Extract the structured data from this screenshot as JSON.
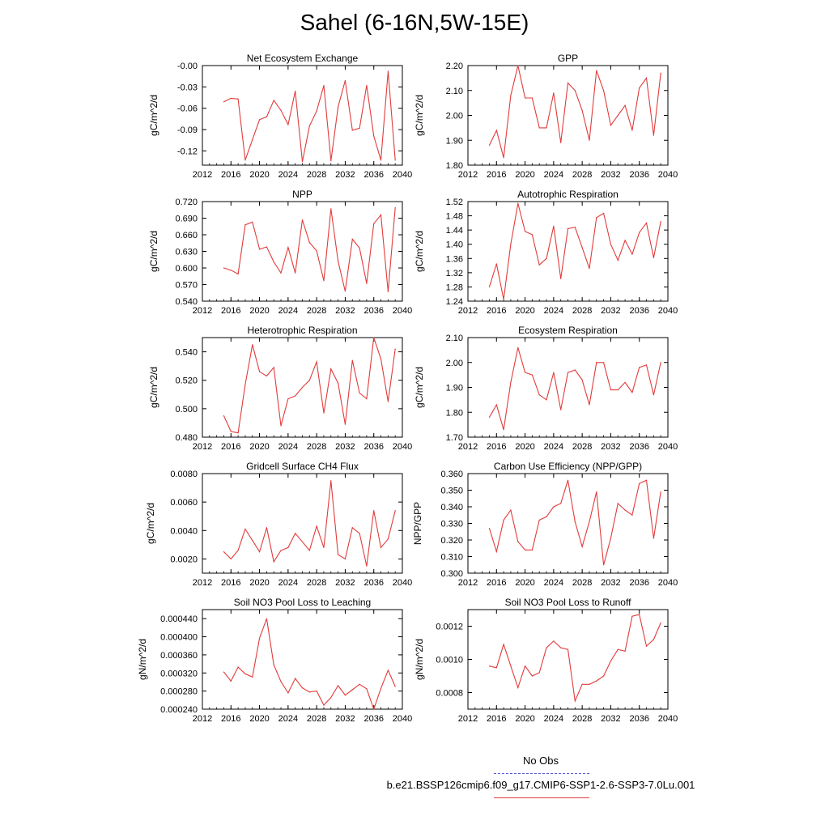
{
  "title": "Sahel (6-16N,5W-15E)",
  "legend": [
    {
      "label": "No Obs",
      "color": "#5b5bd6",
      "style": "dashed"
    },
    {
      "label": "b.e21.BSSP126cmip6.f09_g17.CMIP6-SSP1-2.6-SSP3-7.0Lu.001",
      "color": "#e23b3b",
      "style": "solid"
    }
  ],
  "chart_data": [
    {
      "type": "line",
      "title": "Net Ecosystem Exchange",
      "ylabel": "gC/m^2/d",
      "xlim": [
        2012,
        2040
      ],
      "xticks": [
        "2012",
        "2016",
        "2020",
        "2024",
        "2028",
        "2032",
        "2036",
        "2040"
      ],
      "ylim": [
        -0.14,
        0
      ],
      "yticks": [
        -0.12,
        -0.09,
        -0.06,
        -0.03,
        -0.0
      ],
      "ytick_labels": [
        "-0.12",
        "-0.09",
        "-0.06",
        "-0.03",
        "-0.00"
      ],
      "series": [
        {
          "color": "#e23b3b",
          "x": [
            2015,
            2016,
            2017,
            2018,
            2019,
            2020,
            2021,
            2022,
            2023,
            2024,
            2025,
            2026,
            2027,
            2028,
            2029,
            2030,
            2031,
            2032,
            2033,
            2034,
            2035,
            2036,
            2037,
            2038,
            2039
          ],
          "values": [
            -0.051,
            -0.046,
            -0.047,
            -0.133,
            -0.104,
            -0.076,
            -0.072,
            -0.049,
            -0.063,
            -0.083,
            -0.036,
            -0.135,
            -0.085,
            -0.064,
            -0.028,
            -0.134,
            -0.058,
            -0.021,
            -0.091,
            -0.088,
            -0.028,
            -0.099,
            -0.133,
            -0.008,
            -0.133
          ]
        }
      ]
    },
    {
      "type": "line",
      "title": "GPP",
      "ylabel": "gC/m^2/d",
      "xlim": [
        2012,
        2040
      ],
      "xticks": [
        "2012",
        "2016",
        "2020",
        "2024",
        "2028",
        "2032",
        "2036",
        "2040"
      ],
      "ylim": [
        1.8,
        2.2
      ],
      "yticks": [
        1.8,
        1.9,
        2.0,
        2.1,
        2.2
      ],
      "ytick_labels": [
        "1.80",
        "1.90",
        "2.00",
        "2.10",
        "2.20"
      ],
      "series": [
        {
          "color": "#e23b3b",
          "x": [
            2015,
            2016,
            2017,
            2018,
            2019,
            2020,
            2021,
            2022,
            2023,
            2024,
            2025,
            2026,
            2027,
            2028,
            2029,
            2030,
            2031,
            2032,
            2033,
            2034,
            2035,
            2036,
            2037,
            2038,
            2039
          ],
          "values": [
            1.88,
            1.94,
            1.83,
            2.08,
            2.2,
            2.07,
            2.07,
            1.95,
            1.95,
            2.09,
            1.89,
            2.13,
            2.1,
            2.02,
            1.9,
            2.18,
            2.1,
            1.96,
            2.0,
            2.04,
            1.94,
            2.11,
            2.15,
            1.92,
            2.17
          ]
        }
      ]
    },
    {
      "type": "line",
      "title": "NPP",
      "ylabel": "gC/m^2/d",
      "xlim": [
        2012,
        2040
      ],
      "xticks": [
        "2012",
        "2016",
        "2020",
        "2024",
        "2028",
        "2032",
        "2036",
        "2040"
      ],
      "ylim": [
        0.54,
        0.72
      ],
      "yticks": [
        0.54,
        0.57,
        0.6,
        0.63,
        0.66,
        0.69,
        0.72
      ],
      "ytick_labels": [
        "0.540",
        "0.570",
        "0.600",
        "0.630",
        "0.660",
        "0.690",
        "0.720"
      ],
      "series": [
        {
          "color": "#e23b3b",
          "x": [
            2015,
            2016,
            2017,
            2018,
            2019,
            2020,
            2021,
            2022,
            2023,
            2024,
            2025,
            2026,
            2027,
            2028,
            2029,
            2030,
            2031,
            2032,
            2033,
            2034,
            2035,
            2036,
            2037,
            2038,
            2039
          ],
          "values": [
            0.6,
            0.596,
            0.589,
            0.678,
            0.683,
            0.634,
            0.638,
            0.611,
            0.591,
            0.637,
            0.591,
            0.687,
            0.646,
            0.631,
            0.577,
            0.707,
            0.612,
            0.558,
            0.652,
            0.636,
            0.572,
            0.68,
            0.696,
            0.557,
            0.709
          ]
        }
      ]
    },
    {
      "type": "line",
      "title": "Autotrophic Respiration",
      "ylabel": "gC/m^2/d",
      "xlim": [
        2012,
        2040
      ],
      "xticks": [
        "2012",
        "2016",
        "2020",
        "2024",
        "2028",
        "2032",
        "2036",
        "2040"
      ],
      "ylim": [
        1.24,
        1.52
      ],
      "yticks": [
        1.24,
        1.28,
        1.32,
        1.36,
        1.4,
        1.44,
        1.48,
        1.52
      ],
      "ytick_labels": [
        "1.24",
        "1.28",
        "1.32",
        "1.36",
        "1.40",
        "1.44",
        "1.48",
        "1.52"
      ],
      "series": [
        {
          "color": "#e23b3b",
          "x": [
            2015,
            2016,
            2017,
            2018,
            2019,
            2020,
            2021,
            2022,
            2023,
            2024,
            2025,
            2026,
            2027,
            2028,
            2029,
            2030,
            2031,
            2032,
            2033,
            2034,
            2035,
            2036,
            2037,
            2038,
            2039
          ],
          "values": [
            1.28,
            1.345,
            1.245,
            1.4,
            1.515,
            1.436,
            1.427,
            1.342,
            1.36,
            1.451,
            1.303,
            1.444,
            1.448,
            1.391,
            1.332,
            1.475,
            1.487,
            1.4,
            1.355,
            1.411,
            1.372,
            1.433,
            1.46,
            1.362,
            1.464
          ]
        }
      ]
    },
    {
      "type": "line",
      "title": "Heterotrophic Respiration",
      "ylabel": "gC/m^2/d",
      "xlim": [
        2012,
        2040
      ],
      "xticks": [
        "2012",
        "2016",
        "2020",
        "2024",
        "2028",
        "2032",
        "2036",
        "2040"
      ],
      "ylim": [
        0.48,
        0.55
      ],
      "yticks": [
        0.48,
        0.5,
        0.52,
        0.54
      ],
      "ytick_labels": [
        "0.480",
        "0.500",
        "0.520",
        "0.540"
      ],
      "series": [
        {
          "color": "#e23b3b",
          "x": [
            2015,
            2016,
            2017,
            2018,
            2019,
            2020,
            2021,
            2022,
            2023,
            2024,
            2025,
            2026,
            2027,
            2028,
            2029,
            2030,
            2031,
            2032,
            2033,
            2034,
            2035,
            2036,
            2037,
            2038,
            2039
          ],
          "values": [
            0.495,
            0.484,
            0.483,
            0.517,
            0.545,
            0.526,
            0.523,
            0.529,
            0.488,
            0.507,
            0.509,
            0.515,
            0.52,
            0.533,
            0.497,
            0.528,
            0.518,
            0.489,
            0.534,
            0.511,
            0.507,
            0.55,
            0.535,
            0.505,
            0.542
          ]
        }
      ]
    },
    {
      "type": "line",
      "title": "Ecosystem Respiration",
      "ylabel": "gC/m^2/d",
      "xlim": [
        2012,
        2040
      ],
      "xticks": [
        "2012",
        "2016",
        "2020",
        "2024",
        "2028",
        "2032",
        "2036",
        "2040"
      ],
      "ylim": [
        1.7,
        2.1
      ],
      "yticks": [
        1.7,
        1.8,
        1.9,
        2.0,
        2.1
      ],
      "ytick_labels": [
        "1.70",
        "1.80",
        "1.90",
        "2.00",
        "2.10"
      ],
      "series": [
        {
          "color": "#e23b3b",
          "x": [
            2015,
            2016,
            2017,
            2018,
            2019,
            2020,
            2021,
            2022,
            2023,
            2024,
            2025,
            2026,
            2027,
            2028,
            2029,
            2030,
            2031,
            2032,
            2033,
            2034,
            2035,
            2036,
            2037,
            2038,
            2039
          ],
          "values": [
            1.78,
            1.83,
            1.73,
            1.92,
            2.06,
            1.96,
            1.95,
            1.87,
            1.85,
            1.96,
            1.81,
            1.96,
            1.97,
            1.93,
            1.83,
            2.0,
            2.0,
            1.89,
            1.89,
            1.92,
            1.88,
            1.98,
            1.99,
            1.87,
            2.0
          ]
        }
      ]
    },
    {
      "type": "line",
      "title": "Gridcell Surface CH4 Flux",
      "ylabel": "gC/m^2/d",
      "xlim": [
        2012,
        2040
      ],
      "xticks": [
        "2012",
        "2016",
        "2020",
        "2024",
        "2028",
        "2032",
        "2036",
        "2040"
      ],
      "ylim": [
        0.001,
        0.008
      ],
      "yticks": [
        0.002,
        0.004,
        0.006,
        0.008
      ],
      "ytick_labels": [
        "0.0020",
        "0.0040",
        "0.0060",
        "0.0080"
      ],
      "series": [
        {
          "color": "#e23b3b",
          "x": [
            2015,
            2016,
            2017,
            2018,
            2019,
            2020,
            2021,
            2022,
            2023,
            2024,
            2025,
            2026,
            2027,
            2028,
            2029,
            2030,
            2031,
            2032,
            2033,
            2034,
            2035,
            2036,
            2037,
            2038,
            2039
          ],
          "values": [
            0.0025,
            0.002,
            0.0026,
            0.0041,
            0.0033,
            0.0025,
            0.0042,
            0.0018,
            0.0026,
            0.0028,
            0.0038,
            0.0032,
            0.0026,
            0.0043,
            0.0028,
            0.0075,
            0.0023,
            0.002,
            0.0042,
            0.0038,
            0.0015,
            0.0054,
            0.0028,
            0.0034,
            0.0054
          ]
        }
      ]
    },
    {
      "type": "line",
      "title": "Carbon Use Efficiency (NPP/GPP)",
      "ylabel": "NPP/GPP",
      "xlim": [
        2012,
        2040
      ],
      "xticks": [
        "2012",
        "2016",
        "2020",
        "2024",
        "2028",
        "2032",
        "2036",
        "2040"
      ],
      "ylim": [
        0.3,
        0.36
      ],
      "yticks": [
        0.3,
        0.31,
        0.32,
        0.33,
        0.34,
        0.35,
        0.36
      ],
      "ytick_labels": [
        "0.300",
        "0.310",
        "0.320",
        "0.330",
        "0.340",
        "0.350",
        "0.360"
      ],
      "series": [
        {
          "color": "#e23b3b",
          "x": [
            2015,
            2016,
            2017,
            2018,
            2019,
            2020,
            2021,
            2022,
            2023,
            2024,
            2025,
            2026,
            2027,
            2028,
            2029,
            2030,
            2031,
            2032,
            2033,
            2034,
            2035,
            2036,
            2037,
            2038,
            2039
          ],
          "values": [
            0.327,
            0.313,
            0.332,
            0.338,
            0.319,
            0.314,
            0.314,
            0.332,
            0.334,
            0.34,
            0.342,
            0.356,
            0.331,
            0.316,
            0.331,
            0.349,
            0.305,
            0.321,
            0.342,
            0.338,
            0.335,
            0.354,
            0.356,
            0.321,
            0.349
          ]
        }
      ]
    },
    {
      "type": "line",
      "title": "Soil NO3 Pool Loss to Leaching",
      "ylabel": "gN/m^2/d",
      "xlim": [
        2012,
        2040
      ],
      "xticks": [
        "2012",
        "2016",
        "2020",
        "2024",
        "2028",
        "2032",
        "2036",
        "2040"
      ],
      "ylim": [
        0.00024,
        0.00046
      ],
      "yticks": [
        0.00024,
        0.00028,
        0.00032,
        0.00036,
        0.0004,
        0.00044
      ],
      "ytick_labels": [
        "0.000240",
        "0.000280",
        "0.000320",
        "0.000360",
        "0.000400",
        "0.000440"
      ],
      "series": [
        {
          "color": "#e23b3b",
          "x": [
            2015,
            2016,
            2017,
            2018,
            2019,
            2020,
            2021,
            2022,
            2023,
            2024,
            2025,
            2026,
            2027,
            2028,
            2029,
            2030,
            2031,
            2032,
            2033,
            2034,
            2035,
            2036,
            2037,
            2038,
            2039
          ],
          "values": [
            0.000322,
            0.000302,
            0.000333,
            0.000318,
            0.000311,
            0.000397,
            0.00044,
            0.000338,
            0.000301,
            0.000276,
            0.000308,
            0.000287,
            0.000278,
            0.00028,
            0.000249,
            0.000266,
            0.000292,
            0.000271,
            0.000283,
            0.000295,
            0.000285,
            0.00024,
            0.000286,
            0.000326,
            0.00029
          ]
        }
      ]
    },
    {
      "type": "line",
      "title": "Soil NO3 Pool Loss to Runoff",
      "ylabel": "gN/m^2/d",
      "xlim": [
        2012,
        2040
      ],
      "xticks": [
        "2012",
        "2016",
        "2020",
        "2024",
        "2028",
        "2032",
        "2036",
        "2040"
      ],
      "ylim": [
        0.0007,
        0.0013
      ],
      "yticks": [
        0.0008,
        0.001,
        0.0012
      ],
      "ytick_labels": [
        "0.0008",
        "0.0010",
        "0.0012"
      ],
      "series": [
        {
          "color": "#e23b3b",
          "x": [
            2015,
            2016,
            2017,
            2018,
            2019,
            2020,
            2021,
            2022,
            2023,
            2024,
            2025,
            2026,
            2027,
            2028,
            2029,
            2030,
            2031,
            2032,
            2033,
            2034,
            2035,
            2036,
            2037,
            2038,
            2039
          ],
          "values": [
            0.00096,
            0.00095,
            0.00109,
            0.00096,
            0.00083,
            0.00096,
            0.0009,
            0.00092,
            0.00107,
            0.00111,
            0.00107,
            0.00106,
            0.00075,
            0.00085,
            0.00085,
            0.00087,
            0.0009,
            0.00099,
            0.00106,
            0.00105,
            0.00126,
            0.00127,
            0.00108,
            0.00112,
            0.00122
          ]
        }
      ]
    }
  ]
}
